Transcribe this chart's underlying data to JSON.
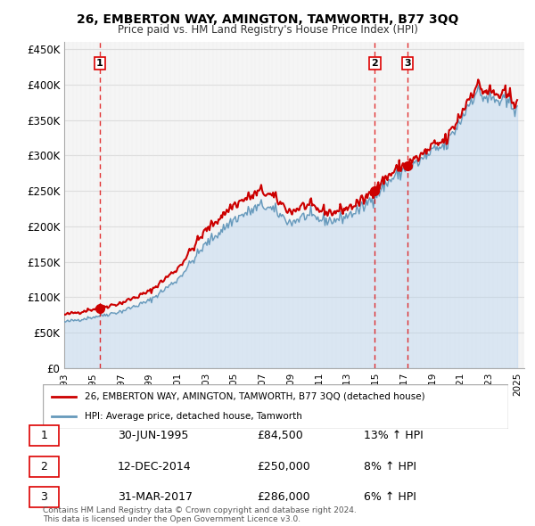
{
  "title": "26, EMBERTON WAY, AMINGTON, TAMWORTH, B77 3QQ",
  "subtitle": "Price paid vs. HM Land Registry's House Price Index (HPI)",
  "ylabel": "",
  "ylim": [
    0,
    460000
  ],
  "yticks": [
    0,
    50000,
    100000,
    150000,
    200000,
    250000,
    300000,
    350000,
    400000,
    450000
  ],
  "ytick_labels": [
    "£0",
    "£50K",
    "£100K",
    "£150K",
    "£200K",
    "£250K",
    "£300K",
    "£350K",
    "£400K",
    "£450K"
  ],
  "sale_color": "#cc0000",
  "hpi_color": "#aaccee",
  "hpi_color_line": "#6699bb",
  "vline_color": "#dd0000",
  "grid_color": "#dddddd",
  "hatch_color": "#eeeeee",
  "sales": [
    {
      "date": "1995-06-30",
      "price": 84500,
      "label": "1"
    },
    {
      "date": "2014-12-12",
      "price": 250000,
      "label": "2"
    },
    {
      "date": "2017-03-31",
      "price": 286000,
      "label": "3"
    }
  ],
  "legend_sale_label": "26, EMBERTON WAY, AMINGTON, TAMWORTH, B77 3QQ (detached house)",
  "legend_hpi_label": "HPI: Average price, detached house, Tamworth",
  "table_rows": [
    {
      "num": "1",
      "date": "30-JUN-1995",
      "price": "£84,500",
      "hpi": "13% ↑ HPI"
    },
    {
      "num": "2",
      "date": "12-DEC-2014",
      "price": "£250,000",
      "hpi": "8% ↑ HPI"
    },
    {
      "num": "3",
      "date": "31-MAR-2017",
      "price": "£286,000",
      "hpi": "6% ↑ HPI"
    }
  ],
  "footnote": "Contains HM Land Registry data © Crown copyright and database right 2024.\nThis data is licensed under the Open Government Licence v3.0.",
  "background_hatch": "#f5f5f5"
}
